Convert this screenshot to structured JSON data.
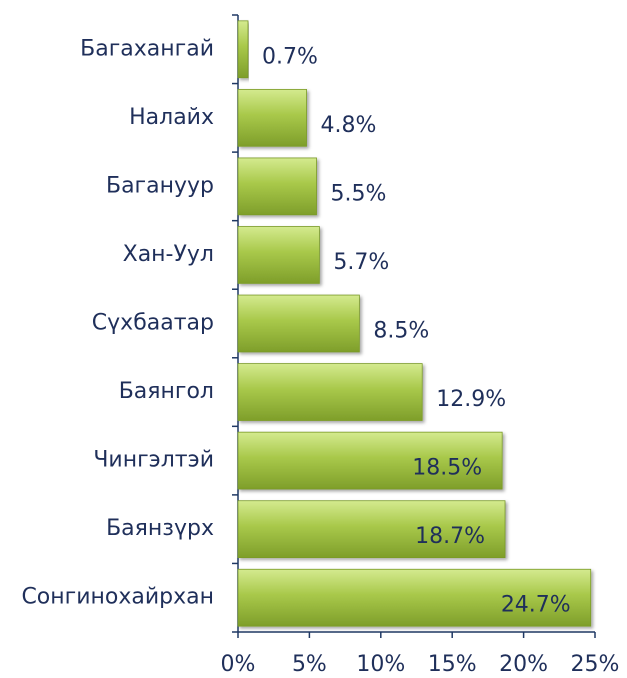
{
  "chart_data": {
    "type": "bar",
    "orientation": "horizontal",
    "categories": [
      "Багахангай",
      "Налайх",
      "Багануур",
      "Хан-Уул",
      "Сүхбаатар",
      "Баянгол",
      "Чингэлтэй",
      "Баянзүрх",
      "Сонгинохайрхан"
    ],
    "values": [
      0.7,
      4.8,
      5.5,
      5.7,
      8.5,
      12.9,
      18.5,
      18.7,
      24.7
    ],
    "value_labels": [
      "0.7%",
      "4.8%",
      "5.5%",
      "5.7%",
      "8.5%",
      "12.9%",
      "18.5%",
      "18.7%",
      "24.7%"
    ],
    "color": "#9bbb3c",
    "xlim": [
      0,
      25
    ],
    "xticks": [
      {
        "value": 0,
        "label": "0%"
      },
      {
        "value": 5,
        "label": "5%"
      },
      {
        "value": 10,
        "label": "10%"
      },
      {
        "value": 15,
        "label": "15%"
      },
      {
        "value": 20,
        "label": "20%"
      },
      {
        "value": 25,
        "label": "25%"
      }
    ]
  }
}
